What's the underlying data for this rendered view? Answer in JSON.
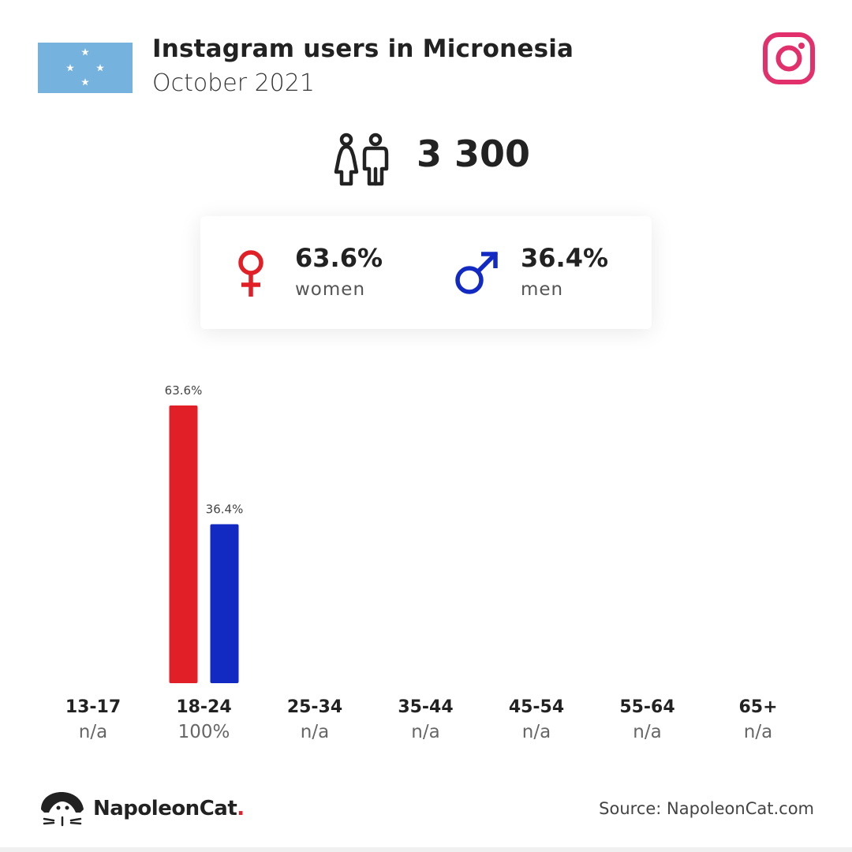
{
  "header": {
    "title": "Instagram users in Micronesia",
    "subtitle": "October 2021",
    "flag_icon": "micronesia-flag-icon",
    "platform_icon": "instagram-icon"
  },
  "summary": {
    "total_users": "3 300",
    "users_icon": "people-icon",
    "women": {
      "pct": "63.6%",
      "label": "women",
      "icon": "female-symbol-icon"
    },
    "men": {
      "pct": "36.4%",
      "label": "men",
      "icon": "male-symbol-icon"
    }
  },
  "colors": {
    "women": "#e01f27",
    "men": "#1229c2",
    "instagram": "#e1306c",
    "flag_blue": "#75b2dd"
  },
  "chart_data": {
    "type": "bar",
    "categories": [
      "13-17",
      "18-24",
      "25-34",
      "35-44",
      "45-54",
      "55-64",
      "65+"
    ],
    "category_share": [
      "n/a",
      "100%",
      "n/a",
      "n/a",
      "n/a",
      "n/a",
      "n/a"
    ],
    "series": [
      {
        "name": "women",
        "values": [
          null,
          63.6,
          null,
          null,
          null,
          null,
          null
        ],
        "labels": [
          null,
          "63.6%",
          null,
          null,
          null,
          null,
          null
        ],
        "color": "#e01f27"
      },
      {
        "name": "men",
        "values": [
          null,
          36.4,
          null,
          null,
          null,
          null,
          null
        ],
        "labels": [
          null,
          "36.4%",
          null,
          null,
          null,
          null,
          null
        ],
        "color": "#1229c2"
      }
    ],
    "ylim": [
      0,
      63.6
    ],
    "grid": false,
    "legend": "none"
  },
  "footer": {
    "brand": "NapoleonCat",
    "brand_dot": ".",
    "logo_icon": "napoleoncat-logo-icon",
    "source": "Source: NapoleonCat.com"
  }
}
